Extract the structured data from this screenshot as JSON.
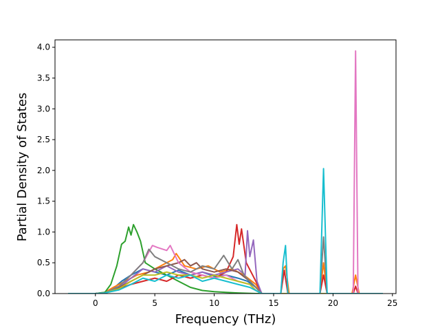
{
  "chart_data": {
    "type": "line",
    "title": "",
    "xlabel": "Frequency (THz)",
    "ylabel": "Partial Density of States",
    "xlim": [
      -3.4,
      25.3
    ],
    "ylim": [
      0,
      4.12
    ],
    "xticks": [
      0,
      5,
      10,
      15,
      20,
      25
    ],
    "yticks": [
      0.0,
      0.5,
      1.0,
      1.5,
      2.0,
      2.5,
      3.0,
      3.5,
      4.0
    ],
    "xtick_labels": [
      "0",
      "5",
      "10",
      "15",
      "20",
      "25"
    ],
    "ytick_labels": [
      "0.0",
      "0.5",
      "1.0",
      "1.5",
      "2.0",
      "2.5",
      "3.0",
      "3.5",
      "4.0"
    ],
    "grid": false,
    "legend": "none",
    "series": [
      {
        "color": "#1f77b4",
        "x": [
          -2.3,
          0,
          0.8,
          1.5,
          2.2,
          3,
          4,
          5,
          6,
          7,
          8,
          9,
          10,
          11,
          12,
          12.8,
          13.5,
          14,
          24.2
        ],
        "y": [
          0,
          0,
          0.02,
          0.08,
          0.2,
          0.3,
          0.4,
          0.35,
          0.3,
          0.38,
          0.3,
          0.35,
          0.28,
          0.3,
          0.25,
          0.2,
          0.1,
          0,
          0
        ]
      },
      {
        "color": "#ff7f0e",
        "x": [
          -2.3,
          0,
          0.8,
          1.5,
          2.5,
          3.5,
          4.5,
          5.5,
          6.5,
          6.8,
          7.5,
          8.5,
          9.5,
          10.5,
          11.5,
          12.5,
          13.5,
          14,
          15.6,
          15.8,
          16,
          16.3,
          18.9,
          19.2,
          19.5,
          21.6,
          21.9,
          22.2,
          24.2
        ],
        "y": [
          0,
          0,
          0.02,
          0.1,
          0.2,
          0.3,
          0.35,
          0.45,
          0.55,
          0.65,
          0.45,
          0.4,
          0.45,
          0.35,
          0.4,
          0.3,
          0.15,
          0,
          0,
          0.4,
          0.45,
          0,
          0,
          0.5,
          0,
          0,
          0.3,
          0,
          0
        ]
      },
      {
        "color": "#2ca02c",
        "x": [
          -2.3,
          0,
          0.8,
          1.3,
          1.8,
          2.2,
          2.5,
          2.8,
          3.0,
          3.2,
          3.5,
          3.8,
          4.2,
          5,
          6,
          7,
          8,
          9,
          10,
          11,
          12,
          13.5,
          14,
          24.2
        ],
        "y": [
          0,
          0,
          0.02,
          0.15,
          0.45,
          0.8,
          0.85,
          1.08,
          0.95,
          1.12,
          1.0,
          0.85,
          0.5,
          0.4,
          0.3,
          0.2,
          0.1,
          0.05,
          0.03,
          0.02,
          0.01,
          0,
          0,
          0
        ]
      },
      {
        "color": "#d62728",
        "x": [
          -2.3,
          0,
          0.8,
          2,
          3,
          4,
          5,
          6,
          7,
          8,
          9,
          10,
          11,
          11.6,
          11.9,
          12.1,
          12.3,
          12.7,
          13.5,
          14,
          15.6,
          15.9,
          16.2,
          18.9,
          19.2,
          19.5,
          21.7,
          21.9,
          22.1,
          24.2
        ],
        "y": [
          0,
          0,
          0.01,
          0.08,
          0.15,
          0.2,
          0.25,
          0.2,
          0.3,
          0.25,
          0.3,
          0.25,
          0.35,
          0.6,
          1.12,
          0.8,
          1.05,
          0.5,
          0.2,
          0,
          0,
          0.38,
          0,
          0,
          0.3,
          0,
          0,
          0.12,
          0,
          0
        ]
      },
      {
        "color": "#9467bd",
        "x": [
          -2.3,
          0,
          0.8,
          2,
          3,
          4,
          5,
          6,
          7,
          8,
          9,
          10,
          11,
          12,
          12.6,
          12.8,
          13.0,
          13.3,
          13.6,
          14,
          24.2
        ],
        "y": [
          0,
          0,
          0.01,
          0.1,
          0.25,
          0.4,
          0.35,
          0.45,
          0.35,
          0.3,
          0.35,
          0.3,
          0.35,
          0.4,
          0.3,
          1.02,
          0.6,
          0.87,
          0.2,
          0,
          0
        ]
      },
      {
        "color": "#8c564b",
        "x": [
          -2.3,
          0,
          0.8,
          2,
          3,
          4,
          5,
          6,
          7,
          7.5,
          8,
          8.5,
          9,
          10,
          11,
          12,
          13,
          13.5,
          14,
          24.2
        ],
        "y": [
          0,
          0,
          0.01,
          0.1,
          0.2,
          0.3,
          0.4,
          0.45,
          0.5,
          0.55,
          0.45,
          0.5,
          0.4,
          0.35,
          0.4,
          0.35,
          0.2,
          0.1,
          0,
          0
        ]
      },
      {
        "color": "#e377c2",
        "x": [
          -2.3,
          0,
          0.8,
          2,
          3,
          4,
          4.8,
          5.2,
          6,
          6.3,
          7,
          8,
          9,
          10,
          11,
          12,
          13,
          13.5,
          14,
          21.7,
          21.9,
          22.1,
          24.2
        ],
        "y": [
          0,
          0,
          0.01,
          0.12,
          0.3,
          0.5,
          0.78,
          0.75,
          0.7,
          0.78,
          0.5,
          0.35,
          0.3,
          0.25,
          0.3,
          0.2,
          0.15,
          0.05,
          0,
          0,
          3.94,
          0,
          0
        ]
      },
      {
        "color": "#7f7f7f",
        "x": [
          -2.3,
          0,
          0.8,
          2,
          3,
          4,
          4.5,
          5,
          6,
          7,
          8,
          9,
          10,
          10.8,
          11.5,
          12,
          12.5,
          13,
          13.5,
          14,
          18.9,
          19.2,
          19.5,
          24.2
        ],
        "y": [
          0,
          0,
          0.01,
          0.12,
          0.3,
          0.5,
          0.72,
          0.6,
          0.5,
          0.4,
          0.35,
          0.45,
          0.4,
          0.62,
          0.4,
          0.55,
          0.3,
          0.2,
          0.1,
          0,
          0,
          0.92,
          0,
          0
        ]
      },
      {
        "color": "#bcbd22",
        "x": [
          -2.3,
          0,
          0.8,
          2,
          3,
          4,
          5,
          6,
          7,
          8,
          9,
          10,
          11,
          12,
          13,
          13.5,
          14,
          24.2
        ],
        "y": [
          0,
          0,
          0.01,
          0.08,
          0.2,
          0.3,
          0.3,
          0.35,
          0.3,
          0.3,
          0.25,
          0.3,
          0.25,
          0.2,
          0.15,
          0.05,
          0,
          0
        ]
      },
      {
        "color": "#17becf",
        "x": [
          -2.3,
          0,
          0.8,
          2,
          3,
          4,
          5,
          6,
          7,
          8,
          9,
          10,
          11,
          12,
          13,
          13.5,
          14,
          15.6,
          15.8,
          16,
          16.2,
          18.9,
          19.2,
          19.5,
          24.2
        ],
        "y": [
          0,
          0,
          0.01,
          0.06,
          0.15,
          0.25,
          0.2,
          0.3,
          0.25,
          0.3,
          0.2,
          0.25,
          0.2,
          0.15,
          0.1,
          0.05,
          0,
          0,
          0.5,
          0.78,
          0,
          0,
          2.03,
          0,
          0
        ]
      }
    ]
  }
}
